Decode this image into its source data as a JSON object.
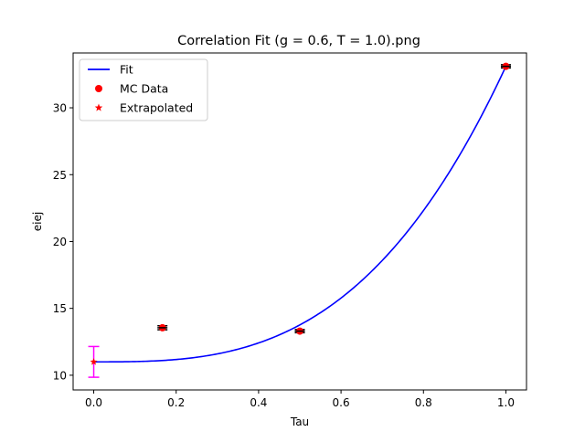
{
  "chart_data": {
    "type": "scatter",
    "title": "Correlation Fit (g = 0.6, T = 1.0).png",
    "xlabel": "Tau",
    "ylabel": "eiej",
    "xlim": [
      -0.05,
      1.05
    ],
    "ylim": [
      8.9,
      34.1
    ],
    "x_ticks": [
      0.0,
      0.2,
      0.4,
      0.6,
      0.8,
      1.0
    ],
    "x_tick_labels": [
      "0.0",
      "0.2",
      "0.4",
      "0.6",
      "0.8",
      "1.0"
    ],
    "y_ticks": [
      10,
      15,
      20,
      25,
      30
    ],
    "y_tick_labels": [
      "10",
      "15",
      "20",
      "25",
      "30"
    ],
    "grid": false,
    "legend": {
      "position": "top-left",
      "entries": [
        {
          "label": "Fit",
          "marker": "line",
          "color": "#0000ff"
        },
        {
          "label": "MC Data",
          "marker": "circle",
          "color": "#ff0000"
        },
        {
          "label": "Extrapolated",
          "marker": "star",
          "color": "#ff0000"
        }
      ]
    },
    "series": [
      {
        "name": "Fit",
        "kind": "line",
        "color": "#0000ff",
        "model": {
          "form": "a + b * x^n",
          "a": 11.0,
          "b": 22.1,
          "n": 3.0
        },
        "x_range": [
          0.0,
          1.0
        ]
      },
      {
        "name": "MC Data",
        "kind": "scatter",
        "color": "#ff0000",
        "x": [
          0.1667,
          0.5,
          1.0
        ],
        "y": [
          13.55,
          13.3,
          33.1
        ],
        "yerr": [
          0.15,
          0.12,
          0.12
        ]
      },
      {
        "name": "Extrapolated",
        "kind": "scatter",
        "color": "#ff0000",
        "marker": "star",
        "errcolor": "#ff00ff",
        "x": [
          0.0
        ],
        "y": [
          11.0
        ],
        "yerr": [
          1.15
        ]
      }
    ]
  }
}
